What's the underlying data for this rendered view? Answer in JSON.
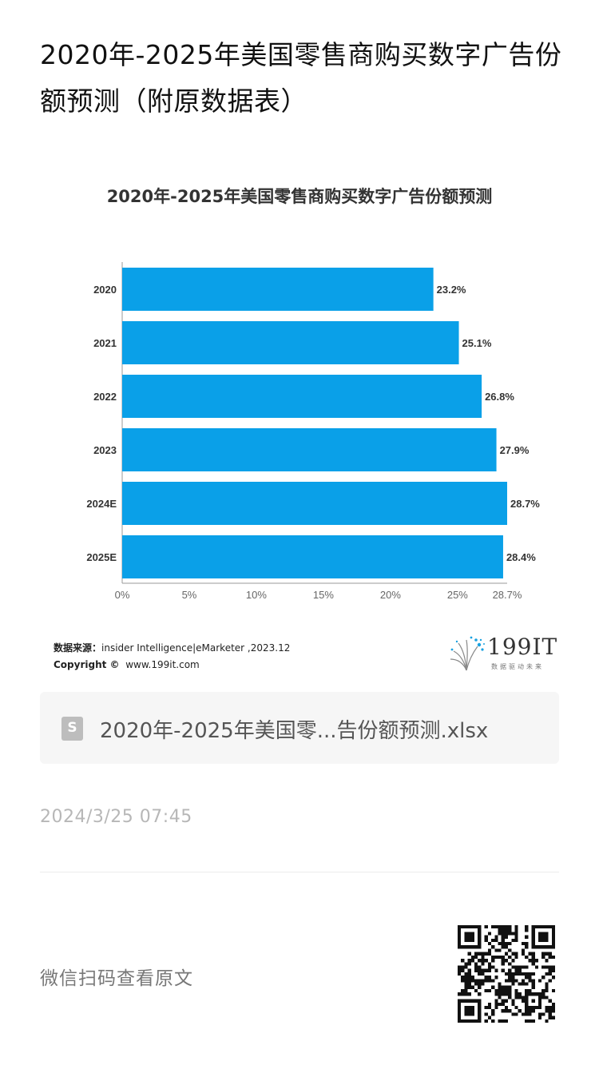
{
  "article": {
    "title": "2020年-2025年美国零售商购买数字广告份额预测（附原数据表）"
  },
  "chart_data": {
    "type": "bar",
    "orientation": "horizontal",
    "title": "2020年-2025年美国零售商购买数字广告份额预测",
    "categories": [
      "2020",
      "2021",
      "2022",
      "2023",
      "2024E",
      "2025E"
    ],
    "values": [
      23.2,
      25.1,
      26.8,
      27.9,
      28.7,
      28.4
    ],
    "value_labels": [
      "23.2%",
      "25.1%",
      "26.8%",
      "27.9%",
      "28.7%",
      "28.4%"
    ],
    "xlim": [
      0,
      28.7
    ],
    "x_ticks": [
      0,
      5,
      10,
      15,
      20,
      25,
      28.7
    ],
    "x_tick_labels": [
      "0%",
      "5%",
      "10%",
      "15%",
      "20%",
      "25%",
      "28.7%"
    ],
    "bar_color": "#0aa0e8",
    "grid": false,
    "legend": "none"
  },
  "source": {
    "label": "数据来源：",
    "text": "insider Intelligence|eMarketer ,2023.12",
    "copyright_label": "Copyright ©",
    "copyright_text": "www.199it.com"
  },
  "brand": {
    "name": "199IT",
    "slogan": "数据驱动未来"
  },
  "attachment": {
    "file_name": "2020年-2025年美国零...告份额预测.xlsx",
    "icon": "spreadsheet-file-icon",
    "icon_letter": "S"
  },
  "timestamp": "2024/3/25 07:45",
  "footer": {
    "scan_text": "微信扫码查看原文",
    "qr_icon": "qr-code-icon"
  }
}
